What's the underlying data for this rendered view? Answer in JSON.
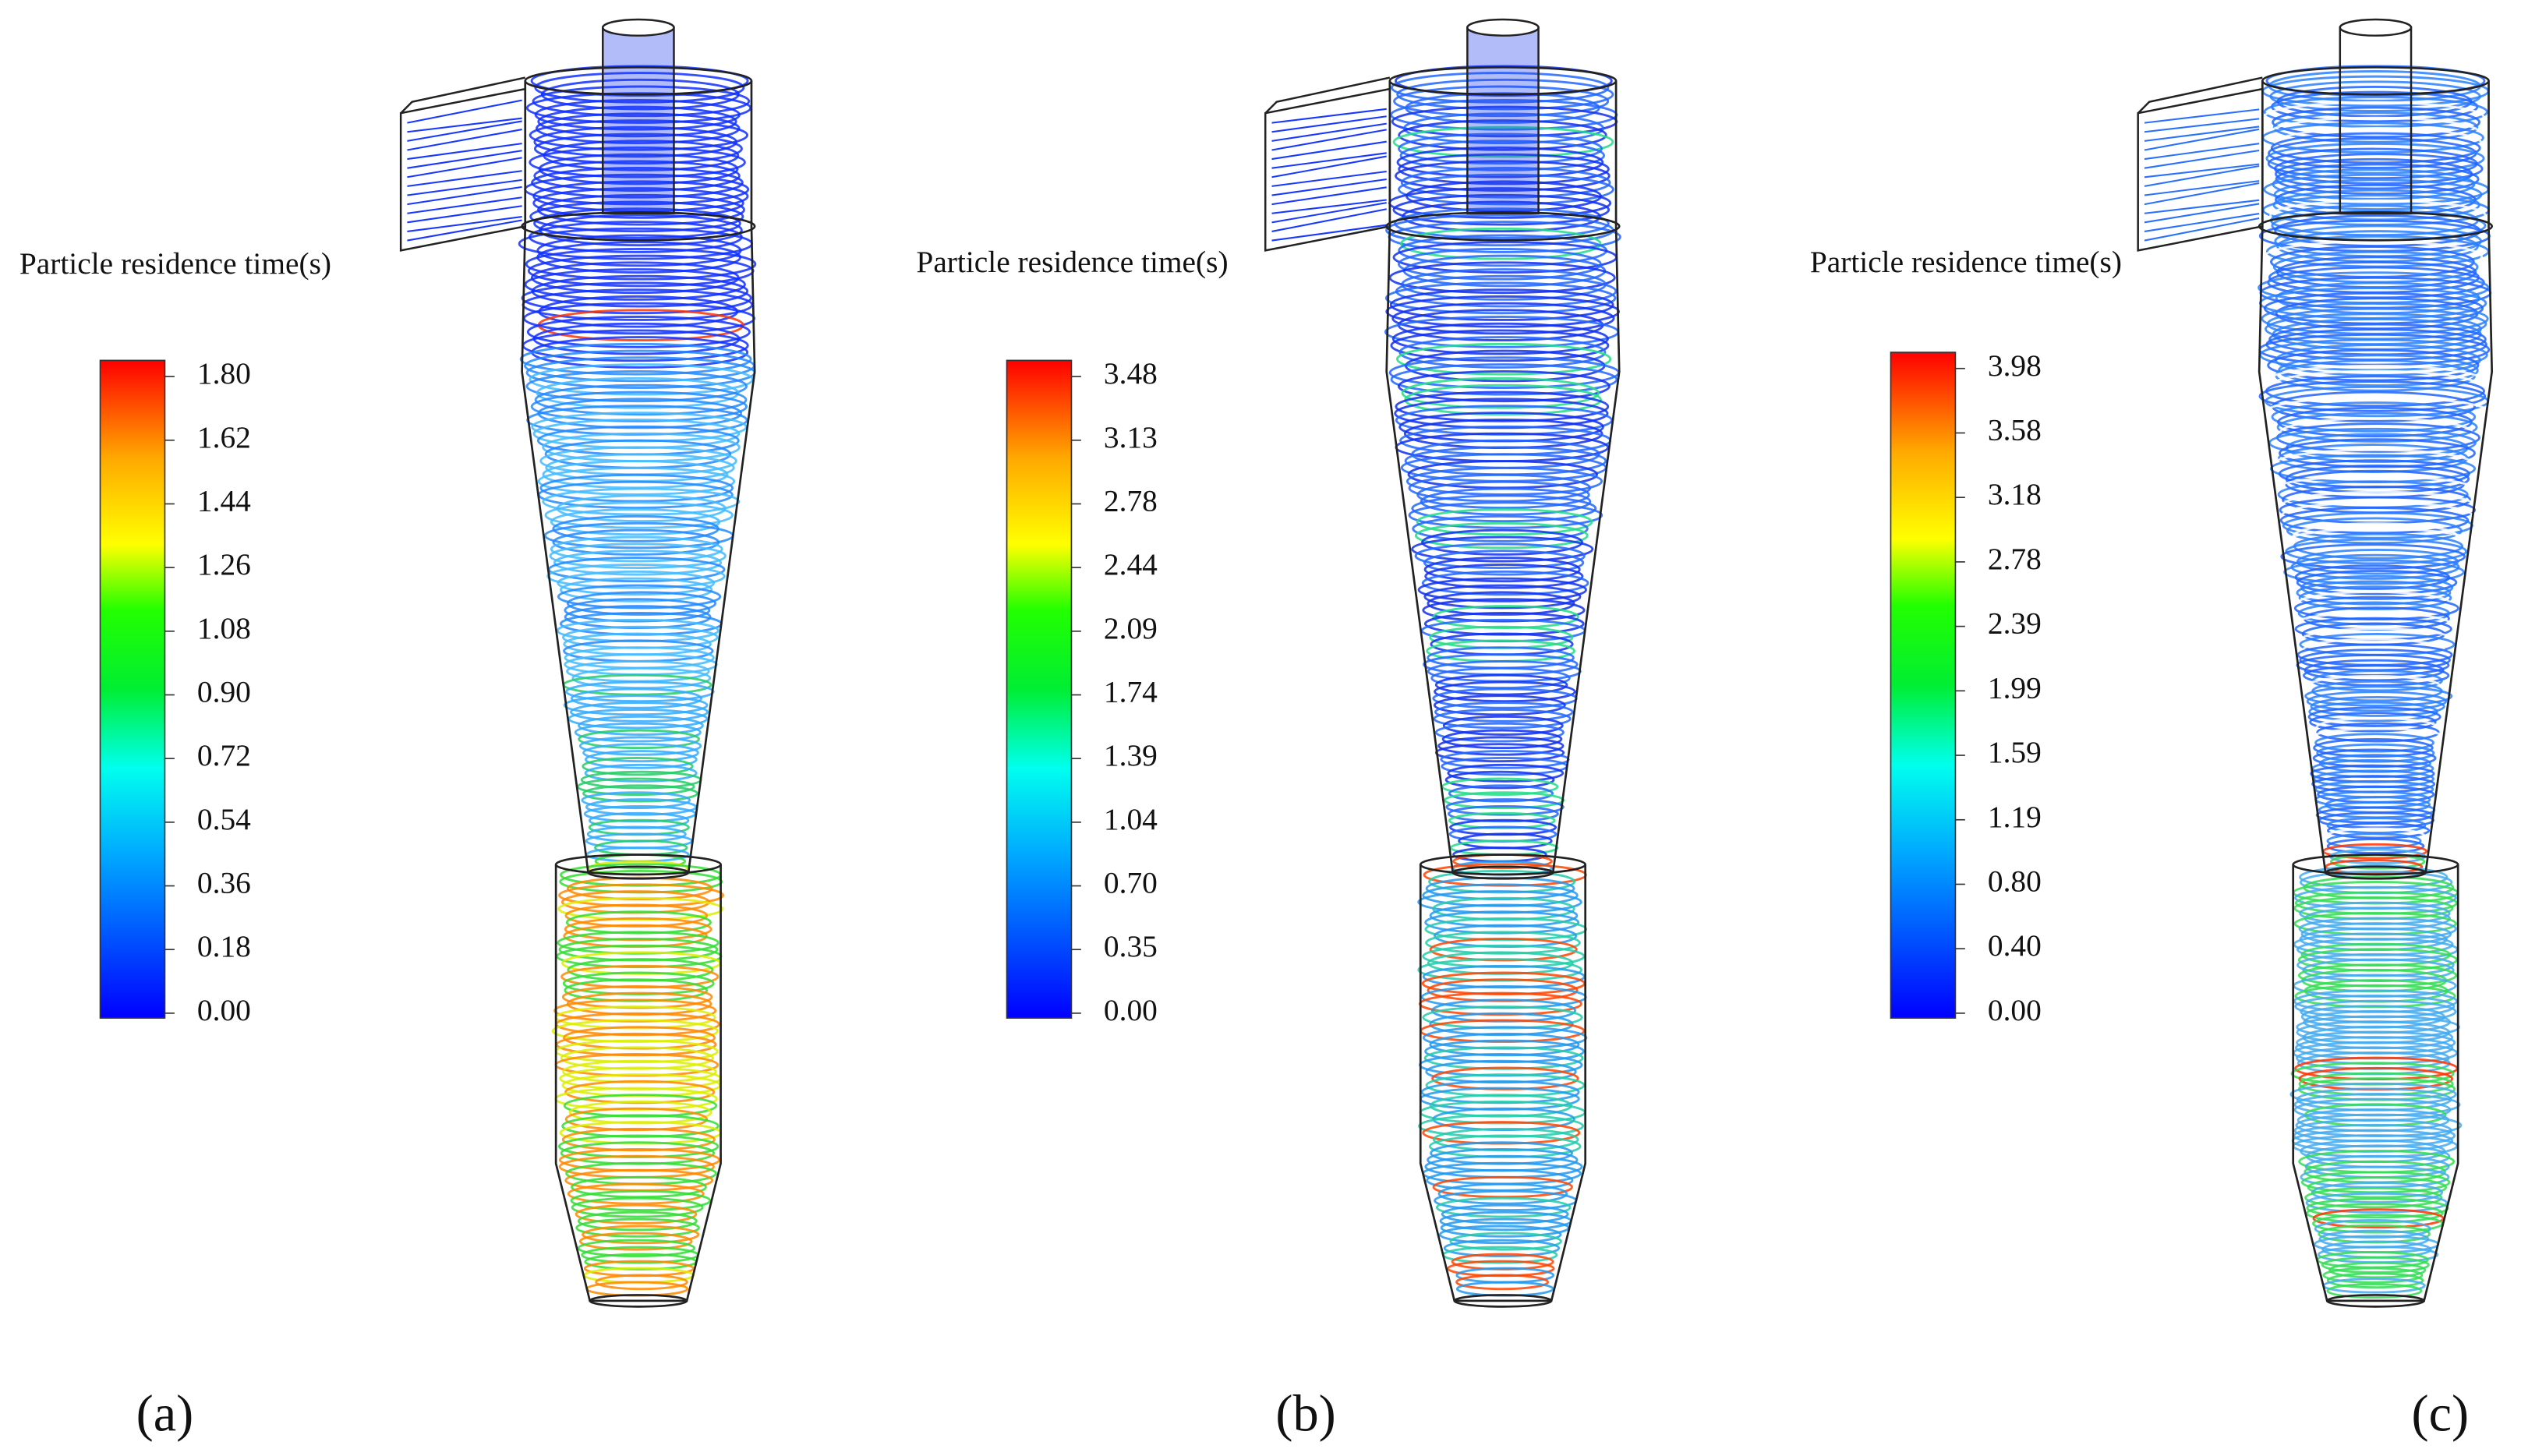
{
  "panels": [
    {
      "title": "Particle residence time(s)",
      "ticks": [
        "1.80",
        "1.62",
        "1.44",
        "1.26",
        "1.08",
        "0.90",
        "0.72",
        "0.54",
        "0.36",
        "0.18",
        "0.00"
      ],
      "label": "(a)"
    },
    {
      "title": "Particle residence time(s)",
      "ticks": [
        "3.48",
        "3.13",
        "2.78",
        "2.44",
        "2.09",
        "1.74",
        "1.39",
        "1.04",
        "0.70",
        "0.35",
        "0.00"
      ],
      "label": "(b)"
    },
    {
      "title": "Particle residence time(s)",
      "ticks": [
        "3.98",
        "3.58",
        "3.18",
        "2.78",
        "2.39",
        "1.99",
        "1.59",
        "1.19",
        "0.80",
        "0.40",
        "0.00"
      ],
      "label": "(c)"
    }
  ]
}
